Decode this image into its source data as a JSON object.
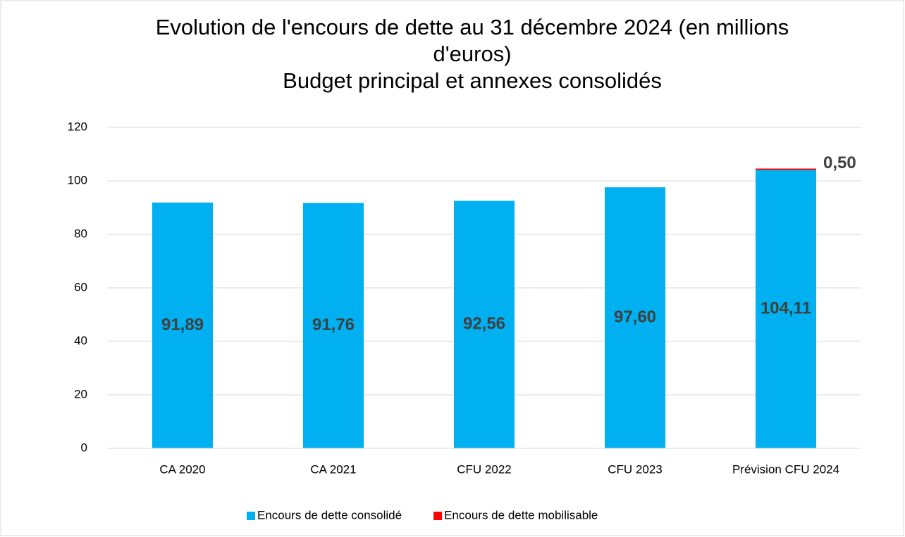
{
  "chart_data": {
    "type": "stacked_bar",
    "title": "Evolution de l'encours de dette au 31 décembre 2024 (en millions d'euros)",
    "subtitle": "Budget principal et annexes consolidés",
    "categories": [
      "CA 2020",
      "CA 2021",
      "CFU 2022",
      "CFU 2023",
      "Prévision CFU 2024"
    ],
    "series": [
      {
        "name": "Encours de dette consolidé",
        "color": "#00b0f0",
        "values": [
          91.89,
          91.76,
          92.56,
          97.6,
          104.11
        ],
        "value_labels": [
          "91,89",
          "91,76",
          "92,56",
          "97,60",
          "104,11"
        ]
      },
      {
        "name": "Encours de dette mobilisable",
        "color": "#ff0000",
        "values": [
          null,
          null,
          null,
          null,
          0.5
        ],
        "value_labels": [
          null,
          null,
          null,
          null,
          "0,50"
        ]
      }
    ],
    "ylim": [
      0,
      120
    ],
    "yticks": [
      0,
      20,
      40,
      60,
      80,
      100,
      120
    ],
    "grid": true,
    "legend": "bottom"
  }
}
